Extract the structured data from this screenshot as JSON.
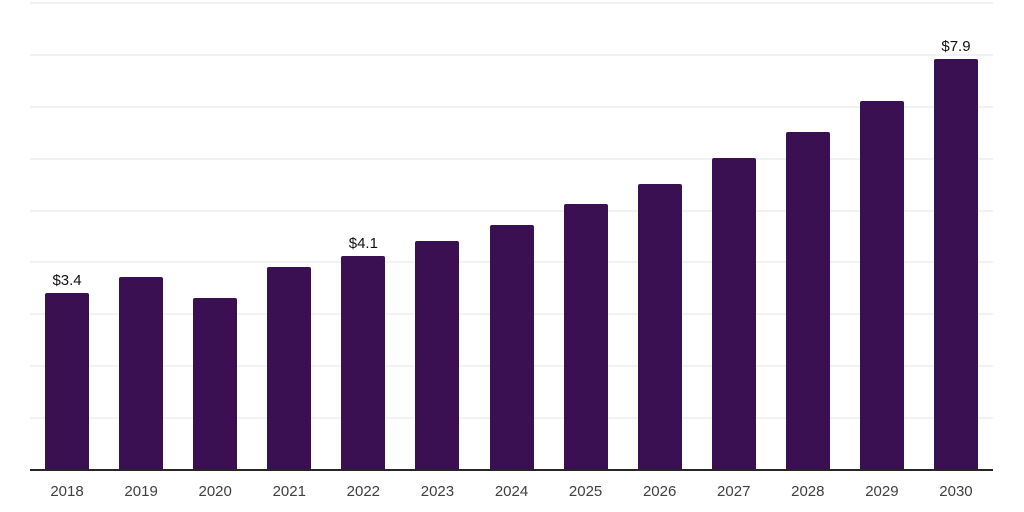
{
  "chart_data": {
    "type": "bar",
    "title": "",
    "xlabel": "",
    "ylabel": "",
    "categories": [
      "2018",
      "2019",
      "2020",
      "2021",
      "2022",
      "2023",
      "2024",
      "2025",
      "2026",
      "2027",
      "2028",
      "2029",
      "2030"
    ],
    "values": [
      3.4,
      3.7,
      3.3,
      3.9,
      4.1,
      4.4,
      4.7,
      5.1,
      5.5,
      6.0,
      6.5,
      7.1,
      7.9
    ],
    "value_labels": {
      "2018": "$3.4",
      "2022": "$4.1",
      "2030": "$7.9"
    },
    "ylim": [
      0,
      9
    ],
    "gridline_step": 1,
    "grid": true,
    "legend": false,
    "colors": {
      "bar": "#3A1053",
      "gridline": "#F2F2F2",
      "axis_line": "#262626",
      "value_label": "#111111",
      "tick_label": "#404040"
    }
  }
}
